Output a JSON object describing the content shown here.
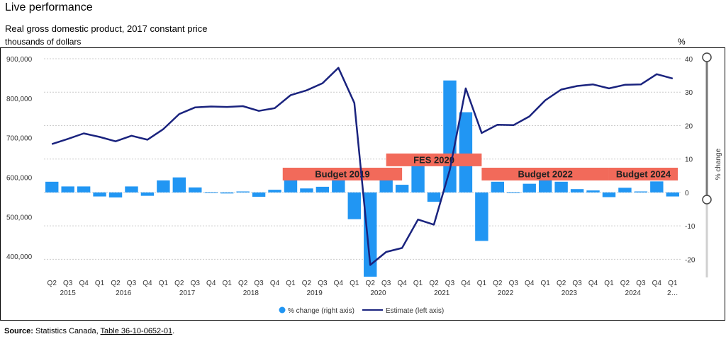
{
  "header": {
    "title": "Live performance",
    "subtitle": "Real gross domestic product, 2017 constant price",
    "left_unit": "thousands of dollars",
    "right_unit": "%"
  },
  "source": {
    "label": "Source:",
    "text": "Statistics Canada,",
    "link": "Table 36-10-0652-01",
    "suffix": "."
  },
  "colors": {
    "bars": "#2196f3",
    "line": "#1a237e",
    "annotation": "#f26a5a",
    "grid": "#cccccc"
  },
  "chart_data": {
    "type": "bar",
    "title": "",
    "ylabel_left": "",
    "ylabel_right": "% change",
    "left_axis": {
      "min": 350000,
      "max": 900000,
      "ticks": [
        "400,000",
        "500,000",
        "600,000",
        "700,000",
        "800,000",
        "900,000"
      ],
      "tick_values": [
        400000,
        500000,
        600000,
        700000,
        800000,
        900000
      ]
    },
    "right_axis": {
      "min": -25,
      "max": 40,
      "ticks": [
        "-20",
        "-10",
        "0",
        "10",
        "20",
        "30",
        "40"
      ],
      "tick_values": [
        -20,
        -10,
        0,
        10,
        20,
        30,
        40
      ]
    },
    "quarters": [
      "Q2",
      "Q3",
      "Q4",
      "Q1",
      "Q2",
      "Q3",
      "Q4",
      "Q1",
      "Q2",
      "Q3",
      "Q4",
      "Q1",
      "Q2",
      "Q3",
      "Q4",
      "Q1",
      "Q2",
      "Q3",
      "Q4",
      "Q1",
      "Q2",
      "Q3",
      "Q4",
      "Q1",
      "Q2",
      "Q3",
      "Q4",
      "Q1",
      "Q2",
      "Q3",
      "Q4",
      "Q1",
      "Q2",
      "Q3",
      "Q4",
      "Q1",
      "Q2",
      "Q3",
      "Q4",
      "Q1"
    ],
    "years": [
      {
        "label": "2015",
        "start": 0,
        "end": 2
      },
      {
        "label": "2016",
        "start": 3,
        "end": 6
      },
      {
        "label": "2017",
        "start": 7,
        "end": 10
      },
      {
        "label": "2018",
        "start": 11,
        "end": 14
      },
      {
        "label": "2019",
        "start": 15,
        "end": 18
      },
      {
        "label": "2020",
        "start": 19,
        "end": 22
      },
      {
        "label": "2021",
        "start": 23,
        "end": 26
      },
      {
        "label": "2022",
        "start": 27,
        "end": 30
      },
      {
        "label": "2023",
        "start": 31,
        "end": 34
      },
      {
        "label": "2024",
        "start": 35,
        "end": 38
      },
      {
        "label": "2…",
        "start": 39,
        "end": 39
      }
    ],
    "series": [
      {
        "name": "% change (right axis)",
        "axis": "right",
        "type": "bar",
        "values": [
          3.2,
          1.8,
          1.8,
          -1.2,
          -1.5,
          1.8,
          -1.0,
          3.6,
          4.5,
          1.5,
          -0.2,
          -0.3,
          0.3,
          -1.3,
          0.8,
          3.7,
          1.2,
          1.7,
          4.6,
          -8.0,
          -25.2,
          6.8,
          2.3,
          10.0,
          -2.8,
          33.5,
          24.0,
          -14.5,
          3.2,
          -0.2,
          2.6,
          4.8,
          3.2,
          1.0,
          0.6,
          -1.4,
          1.4,
          0.3,
          3.3,
          -1.2
        ]
      },
      {
        "name": "Estimate (left axis)",
        "axis": "left",
        "type": "line",
        "values": [
          684000,
          697000,
          711000,
          702000,
          691000,
          705000,
          695000,
          722000,
          760000,
          777000,
          779000,
          778000,
          780000,
          768000,
          775000,
          808000,
          820000,
          838000,
          877000,
          788000,
          378000,
          411000,
          421000,
          493000,
          480000,
          619000,
          825000,
          712000,
          733000,
          732000,
          754000,
          795000,
          822000,
          831000,
          835000,
          825000,
          834000,
          835000,
          861000,
          850000
        ]
      }
    ],
    "annotations": [
      {
        "label": "Budget 2019",
        "start_index": 15,
        "end_index": 22.5,
        "level": 608000
      },
      {
        "label": "FES 2020",
        "start_index": 21.5,
        "end_index": 27.5,
        "level": 644000
      },
      {
        "label": "Budget 2022",
        "start_index": 27.5,
        "end_index": 35.5,
        "level": 608000
      },
      {
        "label": "Budget 2024",
        "start_index": 35.5,
        "end_index": 40,
        "level": 608000
      }
    ],
    "legend": {
      "placement": "bottom",
      "items": [
        "% change (right axis)",
        "Estimate (left axis)"
      ]
    },
    "grid": true
  }
}
